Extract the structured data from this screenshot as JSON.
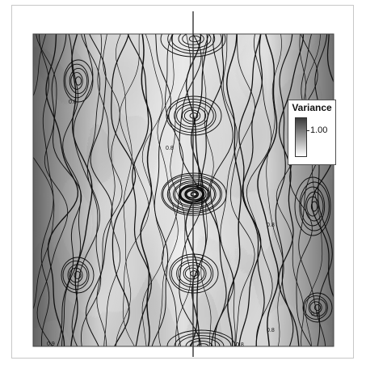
{
  "chart_data": {
    "type": "heatmap",
    "title": "",
    "xlabel": "",
    "ylabel": "",
    "colorbar": {
      "title": "Variance",
      "tick_labels": [
        "1.00"
      ],
      "ticks": [
        1.0
      ],
      "range": [
        0.0,
        2.0
      ],
      "colormap": "grayscale, dark = high, light = low",
      "placement": "top-right"
    },
    "contour_labels": [
      "0.8",
      "0.8",
      "0.8",
      "0.8",
      "0.9",
      "0.9",
      "0.8"
    ],
    "center_line": "vertical",
    "grid": false
  }
}
